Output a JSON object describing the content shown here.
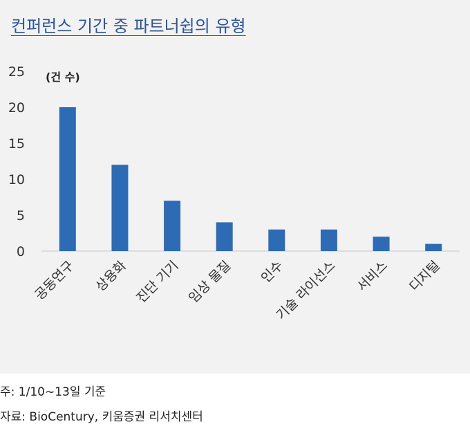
{
  "title": "컨퍼런스 기간 중 파트너쉽의 유형",
  "chart_data": {
    "type": "bar",
    "unit_label": "(건 수)",
    "categories": [
      "공동연구",
      "상용화",
      "진단 기기",
      "임상 물질",
      "인수",
      "기술 라이선스",
      "서비스",
      "디지털"
    ],
    "values": [
      20,
      12,
      7,
      4,
      3,
      3,
      2,
      1
    ],
    "yticks": [
      0,
      5,
      10,
      15,
      20,
      25
    ],
    "ylim": [
      0,
      25
    ],
    "grid": false,
    "legend": "none",
    "bar_color": "#2e6bb5"
  },
  "footer": {
    "note": "주: 1/10~13일 기준",
    "source": "자료: BioCentury, 키움증권 리서치센터"
  }
}
